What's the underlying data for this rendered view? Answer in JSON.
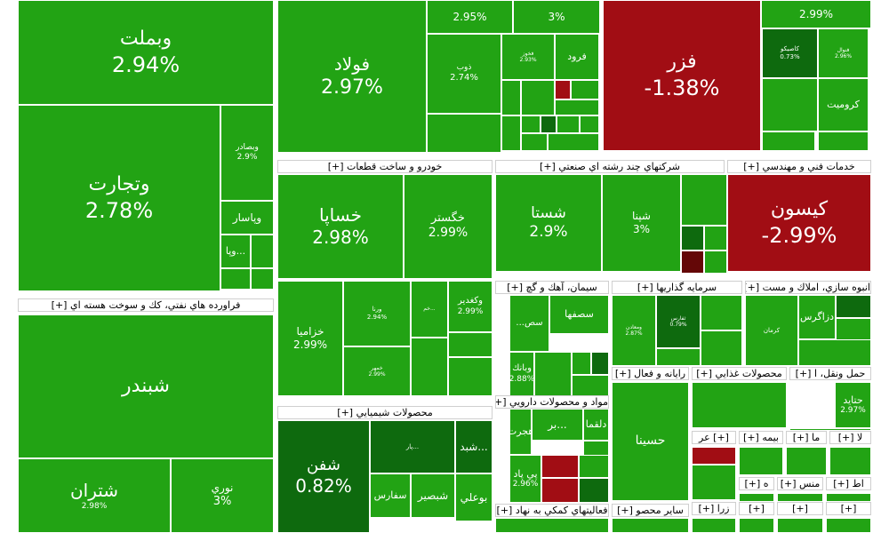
{
  "chart_data": {
    "type": "treemap",
    "colors": {
      "green": "#22a314",
      "light_green": "#33b31f",
      "dark_green": "#0e6a0e",
      "red": "#a10d14",
      "dark_red": "#640707",
      "header_bg": "#ffffff",
      "header_text": "#000000",
      "text": "#ffffff"
    },
    "sectors": [
      {
        "name": "فراورده هاي نفتي، كك و سوخت هسته اي [+]"
      },
      {
        "name": "خودرو و ساخت قطعات [+]"
      },
      {
        "name": "شركتهاي چند رشته اي صنعتي [+]"
      },
      {
        "name": "خدمات فني و مهندسي [+]"
      },
      {
        "name": "محصولات شيميايي [+]"
      },
      {
        "name": "سيمان، آهك و گچ [+]"
      },
      {
        "name": "سرمايه گذاريها [+]"
      },
      {
        "name": "انبوه سازي، املاك و مست [+]"
      },
      {
        "name": "مواد و محصولات دارويي [+]"
      },
      {
        "name": "رايانه و فعال [+]"
      },
      {
        "name": "محصولات غذايي [+]"
      },
      {
        "name": "حمل ونقل، ا [+]"
      },
      {
        "name": "فعاليتهاي كمكي به نهاد [+]"
      },
      {
        "name": "ساير محصو [+]"
      },
      {
        "name": "[+] عر"
      },
      {
        "name": "بيمه [+]"
      },
      {
        "name": "ما [+]"
      },
      {
        "name": "لا [+]"
      },
      {
        "name": "ه [+]"
      },
      {
        "name": "منس [+]"
      },
      {
        "name": "اط [+]"
      },
      {
        "name": "زرا [+]"
      },
      {
        "name": "[+]"
      },
      {
        "name": "[+]"
      },
      {
        "name": "[+]"
      }
    ],
    "tiles": [
      {
        "name": "وبملت",
        "change": "2.94%",
        "color": "green"
      },
      {
        "name": "وتجارت",
        "change": "2.78%",
        "color": "green"
      },
      {
        "name": "وبصادر",
        "change": "2.9%",
        "color": "green"
      },
      {
        "name": "وپاسار",
        "change": "",
        "color": "green"
      },
      {
        "name": "...وپا",
        "change": "",
        "color": "green"
      },
      {
        "name": "فولاد",
        "change": "2.97%",
        "color": "green"
      },
      {
        "name": "",
        "change": "2.95%",
        "color": "green"
      },
      {
        "name": "",
        "change": "3%",
        "color": "green"
      },
      {
        "name": "ذوب",
        "change": "2.74%",
        "color": "green"
      },
      {
        "name": "فخوز",
        "change": "2.93%",
        "color": "green"
      },
      {
        "name": "فرود",
        "change": "",
        "color": "green"
      },
      {
        "name": "فزر",
        "change": "-1.38%",
        "color": "red"
      },
      {
        "name": "",
        "change": "2.99%",
        "color": "green"
      },
      {
        "name": "كاصيكو",
        "change": "0.73%",
        "color": "dark_green"
      },
      {
        "name": "فنوال",
        "change": "2.96%",
        "color": "green"
      },
      {
        "name": "كروميت",
        "change": "",
        "color": "green"
      },
      {
        "name": "كيسون",
        "change": "-2.99%",
        "color": "red"
      },
      {
        "name": "خساپا",
        "change": "2.98%",
        "color": "green"
      },
      {
        "name": "خگستر",
        "change": "2.99%",
        "color": "green"
      },
      {
        "name": "خزاميا",
        "change": "2.99%",
        "color": "green"
      },
      {
        "name": "ورنا",
        "change": "2.94%",
        "color": "green"
      },
      {
        "name": "خمهر",
        "change": "2.99%",
        "color": "green"
      },
      {
        "name": "...خم",
        "change": "",
        "color": "green"
      },
      {
        "name": "وكغدير",
        "change": "2.99%",
        "color": "green"
      },
      {
        "name": "شستا",
        "change": "2.9%",
        "color": "green"
      },
      {
        "name": "شپنا",
        "change": "3%",
        "color": "green"
      },
      {
        "name": "شبندر",
        "change": "",
        "color": "green"
      },
      {
        "name": "شتران",
        "change": "2.98%",
        "color": "green"
      },
      {
        "name": "نوري",
        "change": "3%",
        "color": "green"
      },
      {
        "name": "شفن",
        "change": "0.82%",
        "color": "dark_green"
      },
      {
        "name": "...پار",
        "change": "",
        "color": "dark_green"
      },
      {
        "name": "...شبد",
        "change": "",
        "color": "dark_green"
      },
      {
        "name": "بوعلي",
        "change": "",
        "color": "green"
      },
      {
        "name": "شبصير",
        "change": "",
        "color": "green"
      },
      {
        "name": "سفارس",
        "change": "",
        "color": "green"
      },
      {
        "name": "سصفها",
        "change": "",
        "color": "green"
      },
      {
        "name": "سص...",
        "change": "",
        "color": "green"
      },
      {
        "name": "وبانك",
        "change": "2.88%",
        "color": "green"
      },
      {
        "name": "ومعادن",
        "change": "2.87%",
        "color": "green"
      },
      {
        "name": "ثفارس",
        "change": "0.79%",
        "color": "dark_green"
      },
      {
        "name": "كرمان",
        "change": "",
        "color": "green"
      },
      {
        "name": "دزاگرس",
        "change": "",
        "color": "green"
      },
      {
        "name": "...بر",
        "change": "",
        "color": "green"
      },
      {
        "name": "دلقما",
        "change": "",
        "color": "green"
      },
      {
        "name": "هجرت",
        "change": "",
        "color": "green"
      },
      {
        "name": "پي پاد",
        "change": "2.96%",
        "color": "green"
      },
      {
        "name": "حسينا",
        "change": "",
        "color": "green"
      },
      {
        "name": "حتايد",
        "change": "2.97%",
        "color": "green"
      }
    ]
  }
}
